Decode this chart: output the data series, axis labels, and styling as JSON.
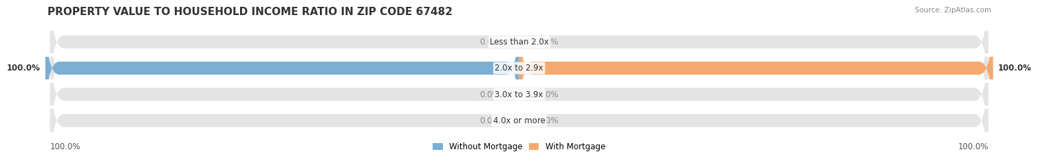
{
  "title": "PROPERTY VALUE TO HOUSEHOLD INCOME RATIO IN ZIP CODE 67482",
  "source": "Source: ZipAtlas.com",
  "categories": [
    "Less than 2.0x",
    "2.0x to 2.9x",
    "3.0x to 3.9x",
    "4.0x or more"
  ],
  "without_mortgage": [
    0.0,
    100.0,
    0.0,
    0.0
  ],
  "with_mortgage": [
    0.0,
    100.0,
    0.0,
    0.0
  ],
  "color_without": "#7bafd4",
  "color_with": "#f5a96e",
  "bg_bar": "#e8e8e8",
  "bg_active": "#f0f0f0",
  "bar_height": 0.55,
  "xlim": [
    -100,
    100
  ],
  "legend_labels": [
    "Without Mortgage",
    "With Mortgage"
  ],
  "title_fontsize": 11,
  "label_fontsize": 8.5,
  "tick_fontsize": 8.5
}
